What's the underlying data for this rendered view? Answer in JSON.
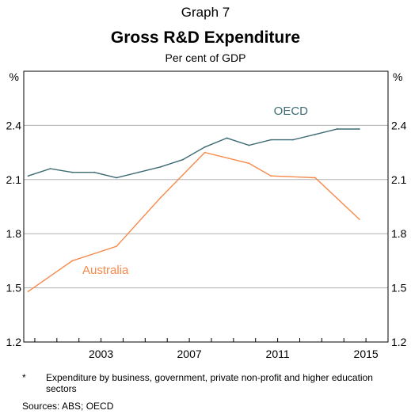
{
  "header": {
    "graph_number": "Graph 7",
    "title": "Gross R&D Expenditure",
    "subtitle": "Per cent of GDP"
  },
  "footer": {
    "footnote_marker": "*",
    "footnote_text": "Expenditure by business, government, private non-profit and higher education sectors",
    "sources": "Sources:  ABS; OECD"
  },
  "chart_data": {
    "type": "line",
    "title": "Gross R&D Expenditure",
    "subtitle": "Per cent of GDP",
    "y_unit_left": "%",
    "y_unit_right": "%",
    "xlim": [
      1999.5,
      2016
    ],
    "ylim": [
      1.2,
      2.7
    ],
    "yticks": [
      1.2,
      1.5,
      1.8,
      2.1,
      2.4
    ],
    "ytick_labels": [
      "1.2",
      "1.5",
      "1.8",
      "2.1",
      "2.4"
    ],
    "xticks": [
      2003,
      2007,
      2011,
      2015
    ],
    "xtick_labels": [
      "2003",
      "2007",
      "2011",
      "2015"
    ],
    "grid": "horizontal",
    "series": [
      {
        "name": "OECD",
        "color": "#3d6b73",
        "x": [
          1999.7,
          2000.7,
          2001.7,
          2002.7,
          2003.7,
          2004.7,
          2005.7,
          2006.7,
          2007.7,
          2008.7,
          2009.7,
          2010.7,
          2011.7,
          2012.7,
          2013.7,
          2014.7
        ],
        "y": [
          2.12,
          2.16,
          2.14,
          2.14,
          2.11,
          2.14,
          2.17,
          2.21,
          2.28,
          2.33,
          2.29,
          2.32,
          2.32,
          2.35,
          2.38,
          2.38
        ]
      },
      {
        "name": "Australia",
        "color": "#f7894a",
        "x": [
          1999.7,
          2001.7,
          2003.7,
          2005.7,
          2007.7,
          2009.7,
          2010.7,
          2012.7,
          2014.7
        ],
        "y": [
          1.48,
          1.65,
          1.73,
          2.0,
          2.25,
          2.19,
          2.12,
          2.11,
          1.88
        ]
      }
    ]
  }
}
